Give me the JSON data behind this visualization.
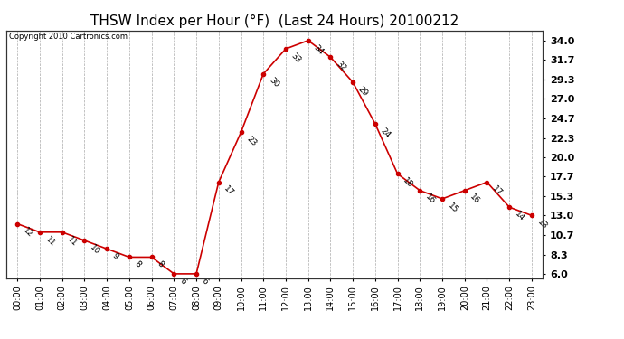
{
  "title": "THSW Index per Hour (°F)  (Last 24 Hours) 20100212",
  "copyright": "Copyright 2010 Cartronics.com",
  "hours": [
    "00:00",
    "01:00",
    "02:00",
    "03:00",
    "04:00",
    "05:00",
    "06:00",
    "07:00",
    "08:00",
    "09:00",
    "10:00",
    "11:00",
    "12:00",
    "13:00",
    "14:00",
    "15:00",
    "16:00",
    "17:00",
    "18:00",
    "19:00",
    "20:00",
    "21:00",
    "22:00",
    "23:00"
  ],
  "values": [
    12,
    11,
    11,
    10,
    9,
    8,
    8,
    6,
    6,
    17,
    23,
    30,
    33,
    34,
    32,
    29,
    24,
    18,
    16,
    15,
    16,
    17,
    14,
    13
  ],
  "yticks": [
    6.0,
    8.3,
    10.7,
    13.0,
    15.3,
    17.7,
    20.0,
    22.3,
    24.7,
    27.0,
    29.3,
    31.7,
    34.0
  ],
  "ylim": [
    5.5,
    35.2
  ],
  "line_color": "#cc0000",
  "marker_color": "#cc0000",
  "bg_color": "#ffffff",
  "grid_color": "#aaaaaa",
  "title_fontsize": 11,
  "annotation_fontsize": 6.5,
  "tick_fontsize": 7,
  "copyright_fontsize": 6,
  "ytick_fontsize": 8
}
